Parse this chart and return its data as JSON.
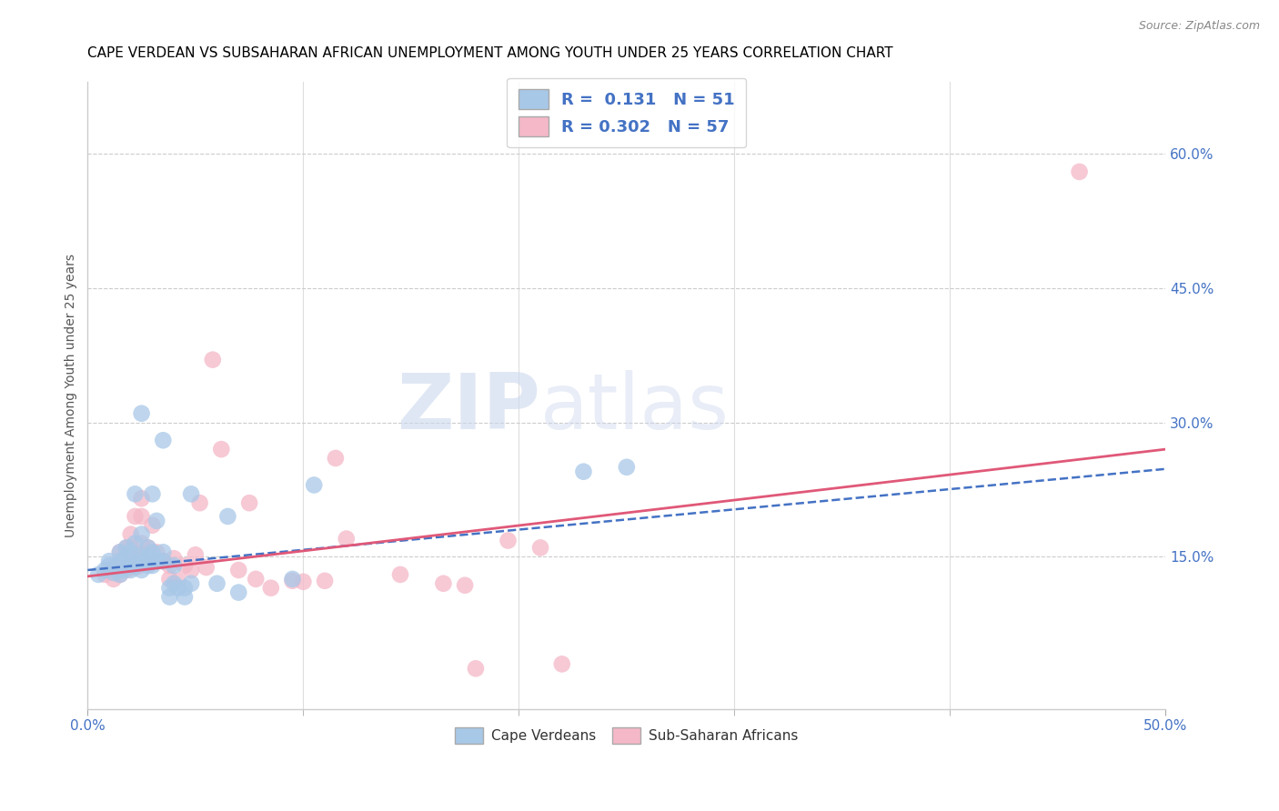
{
  "title": "CAPE VERDEAN VS SUBSAHARAN AFRICAN UNEMPLOYMENT AMONG YOUTH UNDER 25 YEARS CORRELATION CHART",
  "source": "Source: ZipAtlas.com",
  "ylabel": "Unemployment Among Youth under 25 years",
  "xlim": [
    0.0,
    0.5
  ],
  "ylim": [
    -0.02,
    0.68
  ],
  "xtick_positions": [
    0.0,
    0.5
  ],
  "xtick_labels": [
    "0.0%",
    "50.0%"
  ],
  "xtick_minor_positions": [
    0.1,
    0.2,
    0.3,
    0.4
  ],
  "yticks_right": [
    0.15,
    0.3,
    0.45,
    0.6
  ],
  "ytick_labels_right": [
    "15.0%",
    "30.0%",
    "45.0%",
    "60.0%"
  ],
  "blue_color": "#a8c8e8",
  "pink_color": "#f4b8c8",
  "blue_trend_color": "#4472c4",
  "pink_trend_color": "#e05878",
  "legend_R1": "0.131",
  "legend_N1": "51",
  "legend_R2": "0.302",
  "legend_N2": "57",
  "legend_label1": "Cape Verdeans",
  "legend_label2": "Sub-Saharan Africans",
  "watermark_zip": "ZIP",
  "watermark_atlas": "atlas",
  "blue_scatter": [
    [
      0.005,
      0.13
    ],
    [
      0.008,
      0.135
    ],
    [
      0.01,
      0.14
    ],
    [
      0.01,
      0.145
    ],
    [
      0.012,
      0.132
    ],
    [
      0.013,
      0.138
    ],
    [
      0.015,
      0.13
    ],
    [
      0.015,
      0.145
    ],
    [
      0.015,
      0.155
    ],
    [
      0.016,
      0.135
    ],
    [
      0.018,
      0.138
    ],
    [
      0.018,
      0.15
    ],
    [
      0.018,
      0.16
    ],
    [
      0.02,
      0.135
    ],
    [
      0.02,
      0.14
    ],
    [
      0.02,
      0.155
    ],
    [
      0.022,
      0.14
    ],
    [
      0.022,
      0.165
    ],
    [
      0.022,
      0.22
    ],
    [
      0.024,
      0.145
    ],
    [
      0.025,
      0.135
    ],
    [
      0.025,
      0.15
    ],
    [
      0.025,
      0.175
    ],
    [
      0.025,
      0.31
    ],
    [
      0.028,
      0.14
    ],
    [
      0.028,
      0.15
    ],
    [
      0.028,
      0.16
    ],
    [
      0.03,
      0.14
    ],
    [
      0.03,
      0.155
    ],
    [
      0.03,
      0.22
    ],
    [
      0.032,
      0.145
    ],
    [
      0.032,
      0.19
    ],
    [
      0.035,
      0.145
    ],
    [
      0.035,
      0.155
    ],
    [
      0.035,
      0.28
    ],
    [
      0.038,
      0.105
    ],
    [
      0.038,
      0.115
    ],
    [
      0.04,
      0.12
    ],
    [
      0.04,
      0.14
    ],
    [
      0.042,
      0.115
    ],
    [
      0.045,
      0.105
    ],
    [
      0.045,
      0.115
    ],
    [
      0.048,
      0.12
    ],
    [
      0.048,
      0.22
    ],
    [
      0.06,
      0.12
    ],
    [
      0.065,
      0.195
    ],
    [
      0.07,
      0.11
    ],
    [
      0.095,
      0.125
    ],
    [
      0.105,
      0.23
    ],
    [
      0.23,
      0.245
    ],
    [
      0.25,
      0.25
    ]
  ],
  "pink_scatter": [
    [
      0.008,
      0.13
    ],
    [
      0.01,
      0.135
    ],
    [
      0.012,
      0.125
    ],
    [
      0.013,
      0.14
    ],
    [
      0.015,
      0.13
    ],
    [
      0.015,
      0.145
    ],
    [
      0.015,
      0.155
    ],
    [
      0.016,
      0.138
    ],
    [
      0.018,
      0.135
    ],
    [
      0.018,
      0.148
    ],
    [
      0.018,
      0.16
    ],
    [
      0.02,
      0.138
    ],
    [
      0.02,
      0.148
    ],
    [
      0.02,
      0.16
    ],
    [
      0.02,
      0.175
    ],
    [
      0.022,
      0.138
    ],
    [
      0.022,
      0.148
    ],
    [
      0.022,
      0.195
    ],
    [
      0.024,
      0.14
    ],
    [
      0.025,
      0.15
    ],
    [
      0.025,
      0.165
    ],
    [
      0.025,
      0.195
    ],
    [
      0.025,
      0.215
    ],
    [
      0.028,
      0.145
    ],
    [
      0.028,
      0.16
    ],
    [
      0.03,
      0.148
    ],
    [
      0.03,
      0.185
    ],
    [
      0.032,
      0.145
    ],
    [
      0.032,
      0.155
    ],
    [
      0.035,
      0.145
    ],
    [
      0.038,
      0.125
    ],
    [
      0.038,
      0.14
    ],
    [
      0.04,
      0.148
    ],
    [
      0.042,
      0.123
    ],
    [
      0.045,
      0.14
    ],
    [
      0.048,
      0.135
    ],
    [
      0.05,
      0.152
    ],
    [
      0.052,
      0.21
    ],
    [
      0.055,
      0.138
    ],
    [
      0.058,
      0.37
    ],
    [
      0.062,
      0.27
    ],
    [
      0.07,
      0.135
    ],
    [
      0.075,
      0.21
    ],
    [
      0.078,
      0.125
    ],
    [
      0.085,
      0.115
    ],
    [
      0.095,
      0.123
    ],
    [
      0.1,
      0.122
    ],
    [
      0.11,
      0.123
    ],
    [
      0.115,
      0.26
    ],
    [
      0.12,
      0.17
    ],
    [
      0.145,
      0.13
    ],
    [
      0.165,
      0.12
    ],
    [
      0.175,
      0.118
    ],
    [
      0.18,
      0.025
    ],
    [
      0.195,
      0.168
    ],
    [
      0.21,
      0.16
    ],
    [
      0.22,
      0.03
    ],
    [
      0.46,
      0.58
    ]
  ],
  "blue_trend": [
    0.0,
    0.5,
    0.135,
    0.248
  ],
  "pink_trend": [
    0.0,
    0.5,
    0.128,
    0.27
  ]
}
